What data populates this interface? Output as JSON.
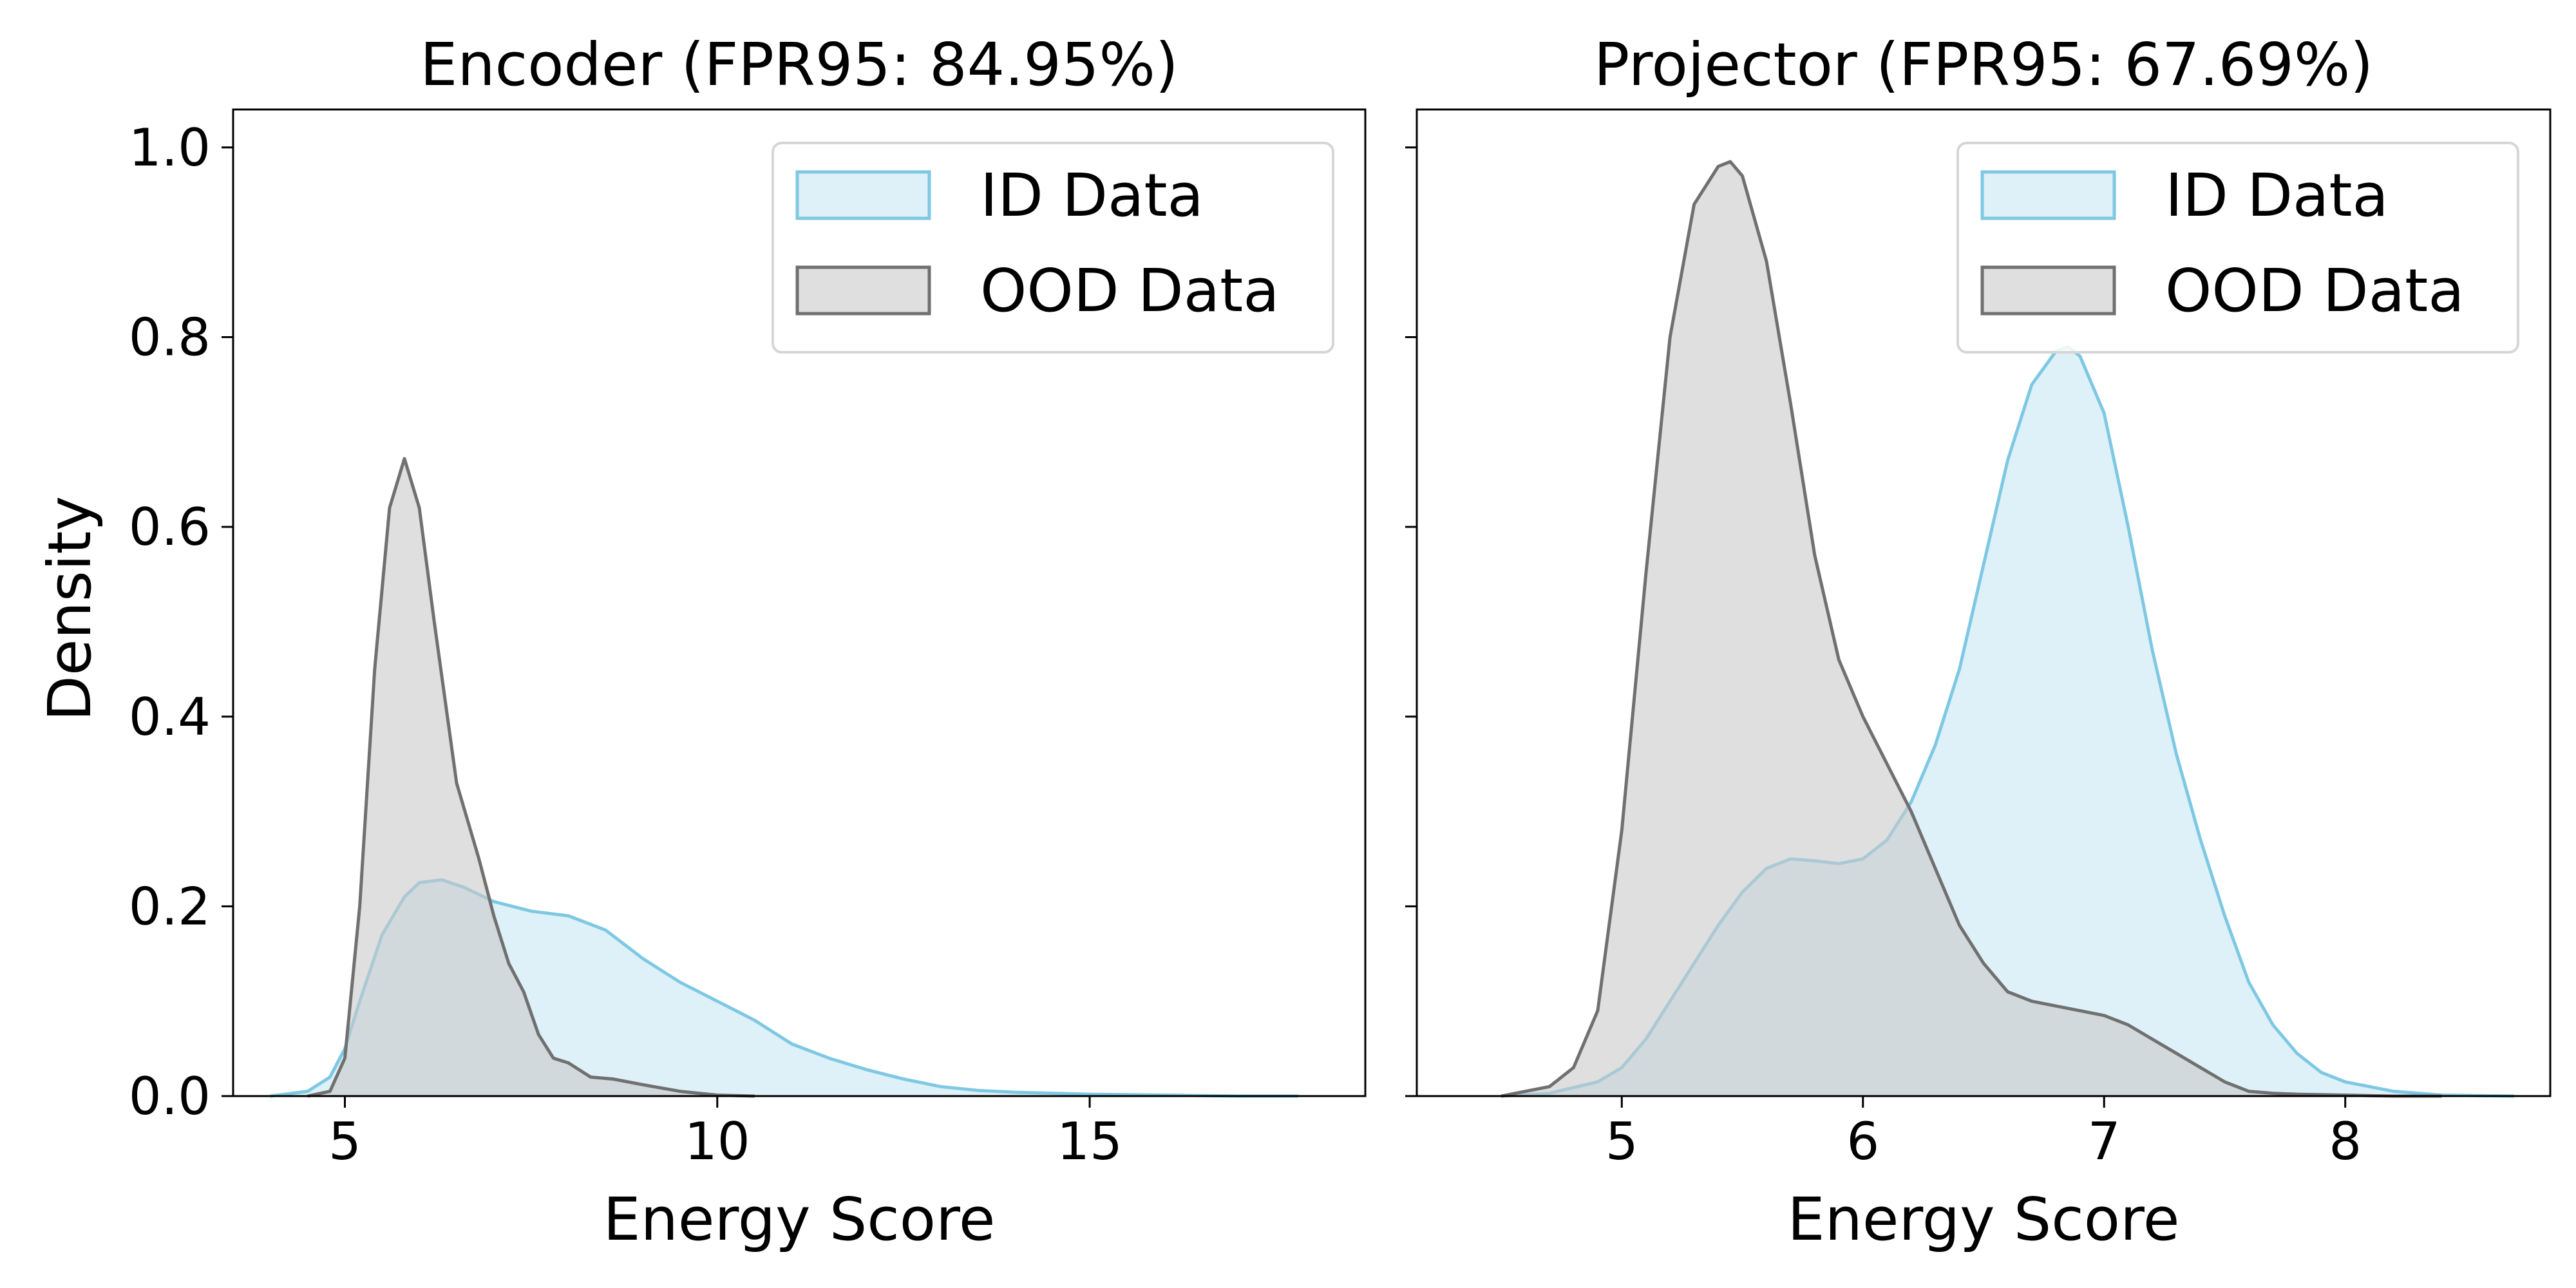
{
  "figure": {
    "ylabel": "Density",
    "colors": {
      "id": "#7ec8e3",
      "id_fill": "#dff1f8",
      "ood": "#707070",
      "ood_fill": "#c9c9c9"
    }
  },
  "chart_data": [
    {
      "type": "area",
      "title": "Encoder (FPR95: 84.95%)",
      "xlabel": "Energy Score",
      "ylabel": "Density",
      "xlim": [
        3.5,
        18.7
      ],
      "ylim": [
        0,
        1.04
      ],
      "xticks": [
        5,
        10,
        15
      ],
      "yticks": [
        0.0,
        0.2,
        0.4,
        0.6,
        0.8,
        1.0
      ],
      "legend": {
        "placement": "top-right",
        "entries": [
          "ID Data",
          "OOD Data"
        ]
      },
      "series": [
        {
          "name": "ID Data",
          "x": [
            4.0,
            4.5,
            4.8,
            5.0,
            5.2,
            5.5,
            5.8,
            6.0,
            6.3,
            6.6,
            7.0,
            7.5,
            8.0,
            8.5,
            9.0,
            9.5,
            10.0,
            10.5,
            11.0,
            11.5,
            12.0,
            12.5,
            13.0,
            13.5,
            14.0,
            15.0,
            16.0,
            17.0,
            17.8
          ],
          "y": [
            0.0,
            0.005,
            0.02,
            0.05,
            0.1,
            0.17,
            0.21,
            0.225,
            0.228,
            0.22,
            0.205,
            0.195,
            0.19,
            0.175,
            0.145,
            0.12,
            0.1,
            0.08,
            0.055,
            0.04,
            0.028,
            0.018,
            0.01,
            0.006,
            0.004,
            0.002,
            0.001,
            0.0,
            0.0
          ]
        },
        {
          "name": "OOD Data",
          "x": [
            4.5,
            4.8,
            5.0,
            5.2,
            5.4,
            5.6,
            5.8,
            6.0,
            6.2,
            6.5,
            6.8,
            7.0,
            7.2,
            7.4,
            7.6,
            7.8,
            8.0,
            8.3,
            8.6,
            9.0,
            9.5,
            10.0,
            10.5
          ],
          "y": [
            0.0,
            0.005,
            0.04,
            0.2,
            0.45,
            0.62,
            0.672,
            0.62,
            0.5,
            0.33,
            0.25,
            0.19,
            0.14,
            0.11,
            0.065,
            0.04,
            0.035,
            0.02,
            0.018,
            0.012,
            0.005,
            0.001,
            0.0
          ]
        }
      ]
    },
    {
      "type": "area",
      "title": "Projector (FPR95: 67.69%)",
      "xlabel": "Energy Score",
      "ylabel": "",
      "xlim": [
        4.15,
        8.85
      ],
      "ylim": [
        0,
        1.04
      ],
      "xticks": [
        5,
        6,
        7,
        8
      ],
      "yticks": [
        0.0,
        0.2,
        0.4,
        0.6,
        0.8,
        1.0
      ],
      "legend": {
        "placement": "top-right",
        "entries": [
          "ID Data",
          "OOD Data"
        ]
      },
      "series": [
        {
          "name": "ID Data",
          "x": [
            4.5,
            4.7,
            4.9,
            5.0,
            5.1,
            5.2,
            5.3,
            5.4,
            5.5,
            5.6,
            5.7,
            5.8,
            5.9,
            6.0,
            6.1,
            6.2,
            6.3,
            6.4,
            6.5,
            6.6,
            6.7,
            6.8,
            6.85,
            6.9,
            7.0,
            7.1,
            7.2,
            7.3,
            7.4,
            7.5,
            7.6,
            7.7,
            7.8,
            7.9,
            8.0,
            8.2,
            8.4,
            8.7
          ],
          "y": [
            0.0,
            0.003,
            0.015,
            0.03,
            0.06,
            0.1,
            0.14,
            0.18,
            0.215,
            0.24,
            0.25,
            0.248,
            0.245,
            0.25,
            0.27,
            0.31,
            0.37,
            0.45,
            0.56,
            0.67,
            0.75,
            0.785,
            0.79,
            0.78,
            0.72,
            0.6,
            0.47,
            0.36,
            0.27,
            0.19,
            0.12,
            0.075,
            0.045,
            0.025,
            0.015,
            0.005,
            0.001,
            0.0
          ]
        },
        {
          "name": "OOD Data",
          "x": [
            4.5,
            4.7,
            4.8,
            4.9,
            5.0,
            5.1,
            5.2,
            5.3,
            5.4,
            5.45,
            5.5,
            5.6,
            5.7,
            5.8,
            5.9,
            6.0,
            6.1,
            6.2,
            6.3,
            6.4,
            6.5,
            6.6,
            6.7,
            6.8,
            6.9,
            7.0,
            7.1,
            7.2,
            7.3,
            7.4,
            7.5,
            7.6,
            7.7,
            7.8,
            8.0,
            8.2,
            8.4
          ],
          "y": [
            0.0,
            0.01,
            0.03,
            0.09,
            0.28,
            0.55,
            0.8,
            0.94,
            0.98,
            0.985,
            0.97,
            0.88,
            0.73,
            0.57,
            0.46,
            0.4,
            0.35,
            0.3,
            0.24,
            0.18,
            0.14,
            0.11,
            0.1,
            0.095,
            0.09,
            0.085,
            0.075,
            0.06,
            0.045,
            0.03,
            0.015,
            0.005,
            0.003,
            0.002,
            0.001,
            0.0,
            0.0
          ]
        }
      ]
    }
  ]
}
